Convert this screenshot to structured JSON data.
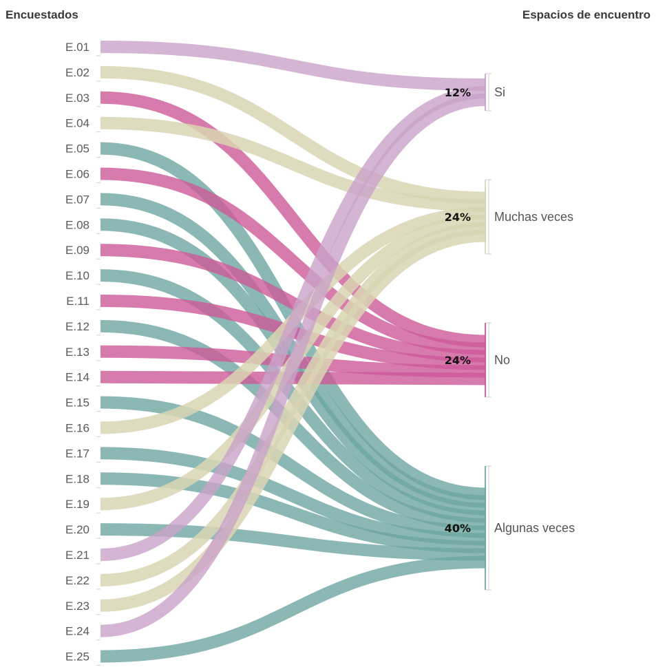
{
  "header": {
    "left_title": "Encuestados",
    "right_title": "Espacios de encuentro"
  },
  "colors": {
    "Si": "#c9a3c8",
    "Muchas veces": "#d9d5b3",
    "No": "#cd5a98",
    "Algunas veces": "#6ea6a2"
  },
  "chart_data": {
    "type": "sankey",
    "sources": [
      "E.01",
      "E.02",
      "E.03",
      "E.04",
      "E.05",
      "E.06",
      "E.07",
      "E.08",
      "E.09",
      "E.10",
      "E.11",
      "E.12",
      "E.13",
      "E.14",
      "E.15",
      "E.16",
      "E.17",
      "E.18",
      "E.19",
      "E.20",
      "E.21",
      "E.22",
      "E.23",
      "E.24",
      "E.25"
    ],
    "targets": [
      {
        "name": "Si",
        "percent": "12%"
      },
      {
        "name": "Muchas veces",
        "percent": "24%"
      },
      {
        "name": "No",
        "percent": "24%"
      },
      {
        "name": "Algunas veces",
        "percent": "40%"
      }
    ],
    "links": [
      {
        "source": "E.01",
        "target": "Si"
      },
      {
        "source": "E.02",
        "target": "Muchas veces"
      },
      {
        "source": "E.03",
        "target": "No"
      },
      {
        "source": "E.04",
        "target": "Muchas veces"
      },
      {
        "source": "E.05",
        "target": "Algunas veces"
      },
      {
        "source": "E.06",
        "target": "No"
      },
      {
        "source": "E.07",
        "target": "Algunas veces"
      },
      {
        "source": "E.08",
        "target": "Algunas veces"
      },
      {
        "source": "E.09",
        "target": "No"
      },
      {
        "source": "E.10",
        "target": "Algunas veces"
      },
      {
        "source": "E.11",
        "target": "No"
      },
      {
        "source": "E.12",
        "target": "Algunas veces"
      },
      {
        "source": "E.13",
        "target": "No"
      },
      {
        "source": "E.14",
        "target": "No"
      },
      {
        "source": "E.15",
        "target": "Algunas veces"
      },
      {
        "source": "E.16",
        "target": "Muchas veces"
      },
      {
        "source": "E.17",
        "target": "Algunas veces"
      },
      {
        "source": "E.18",
        "target": "Algunas veces"
      },
      {
        "source": "E.19",
        "target": "Muchas veces"
      },
      {
        "source": "E.20",
        "target": "Algunas veces"
      },
      {
        "source": "E.21",
        "target": "Si"
      },
      {
        "source": "E.22",
        "target": "Muchas veces"
      },
      {
        "source": "E.23",
        "target": "Muchas veces"
      },
      {
        "source": "E.24",
        "target": "Si"
      },
      {
        "source": "E.25",
        "target": "Algunas veces"
      }
    ]
  }
}
